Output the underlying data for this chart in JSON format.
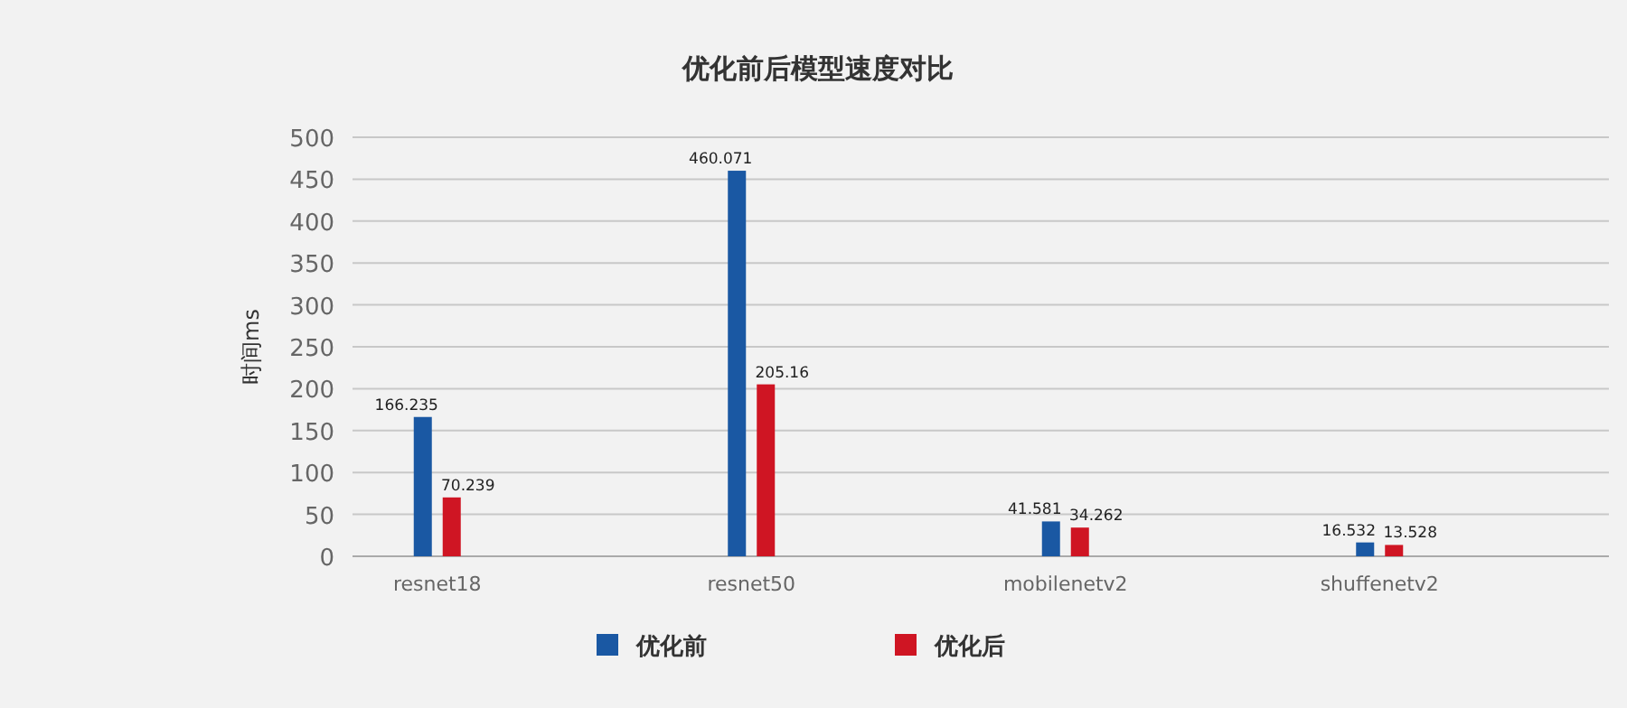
{
  "chart_data": {
    "type": "bar",
    "title": "优化前后模型速度对比",
    "ylabel": "时间ms",
    "categories": [
      "resnet18",
      "resnet50",
      "mobilenetv2",
      "shuffenetv2"
    ],
    "series": [
      {
        "name": "优化前",
        "color": "#1a58a3",
        "values": [
          166.235,
          460.071,
          41.581,
          16.532
        ]
      },
      {
        "name": "优化后",
        "color": "#cf1523",
        "values": [
          70.239,
          205.16,
          34.262,
          13.528
        ]
      }
    ],
    "ylim": [
      0,
      500
    ],
    "yticks": [
      0,
      50,
      100,
      150,
      200,
      250,
      300,
      350,
      400,
      450,
      500
    ],
    "grid": "y",
    "legend": "bottom",
    "data_labels": true
  }
}
